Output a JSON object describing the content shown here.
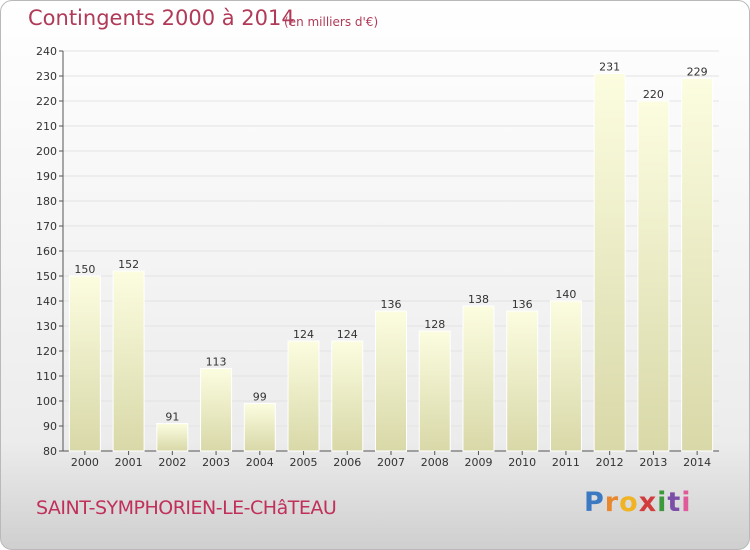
{
  "header": {
    "title": "Contingents 2000 à 2014",
    "subtitle": "(en milliers d'€)"
  },
  "footer": {
    "town": "SAINT-SYMPHORIEN-LE-CHâTEAU",
    "logo_text": "Proxiti",
    "logo_colors": [
      "#3b79c3",
      "#e8872c",
      "#f0b323",
      "#d23c3c",
      "#3b9a3b",
      "#7b4fa8",
      "#e05a9a"
    ]
  },
  "colors": {
    "bar_top": "#fcfde0",
    "bar_bottom": "#d8d8a8",
    "grid": "#e3e3e3",
    "axis": "#555555"
  },
  "chart_data": {
    "type": "bar",
    "categories": [
      "2000",
      "2001",
      "2002",
      "2003",
      "2004",
      "2005",
      "2006",
      "2007",
      "2008",
      "2009",
      "2010",
      "2011",
      "2012",
      "2013",
      "2014"
    ],
    "values": [
      150,
      152,
      91,
      113,
      99,
      124,
      124,
      136,
      128,
      138,
      136,
      140,
      231,
      220,
      229
    ],
    "ylim": [
      80,
      240
    ],
    "yticks": [
      80,
      90,
      100,
      110,
      120,
      130,
      140,
      150,
      160,
      170,
      180,
      190,
      200,
      210,
      220,
      230,
      240
    ],
    "grid": true,
    "legend": "none"
  }
}
